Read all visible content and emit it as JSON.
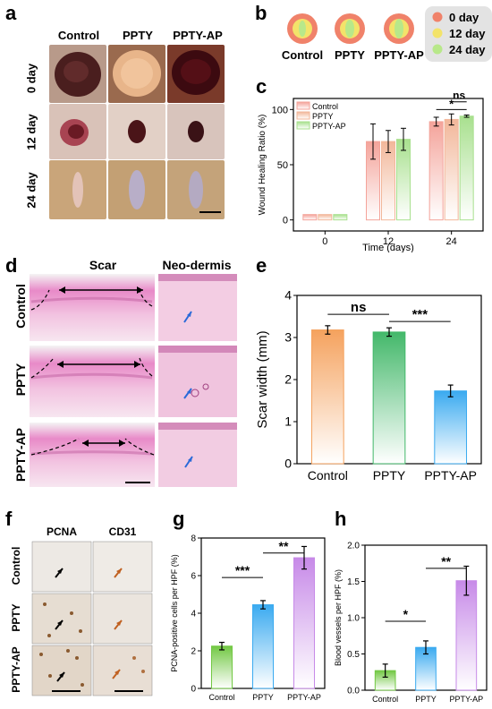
{
  "panel_a": {
    "label": "a",
    "columns": [
      "Control",
      "PPTY",
      "PPTY-AP"
    ],
    "rows": [
      "0 day",
      "12 day",
      "24 day"
    ]
  },
  "panel_b": {
    "label": "b",
    "groups": [
      "Control",
      "PPTY",
      "PPTY-AP"
    ],
    "legend": [
      {
        "label": "0 day",
        "color": "#f0826a"
      },
      {
        "label": "12 day",
        "color": "#f3e36a"
      },
      {
        "label": "24 day",
        "color": "#b8e88a"
      }
    ]
  },
  "panel_d": {
    "label": "d",
    "columns": [
      "Scar",
      "Neo-dermis"
    ],
    "rows": [
      "Control",
      "PPTY",
      "PPTY-AP"
    ]
  },
  "panel_f": {
    "label": "f",
    "columns": [
      "PCNA",
      "CD31"
    ],
    "rows": [
      "Control",
      "PPTY",
      "PPTY-AP"
    ]
  },
  "colors": {
    "control": "#f4a39a",
    "ppty": "#f2b79a",
    "pptyap": "#a8e08e",
    "orange": "#f5a25e",
    "green": "#43b86a",
    "blue": "#3aaaf0",
    "lime": "#72c843",
    "purple": "#c78ae8"
  },
  "chart_data": [
    {
      "id": "c",
      "label": "c",
      "type": "bar",
      "ylabel": "Wound Healing Ratio (%)",
      "xlabel": "Time (days)",
      "categories": [
        "0",
        "12",
        "24"
      ],
      "ylim": [
        -10,
        110
      ],
      "yticks": [
        "0",
        "50",
        "100"
      ],
      "series": [
        {
          "name": "Control",
          "values": [
            0,
            71,
            89
          ],
          "errors": [
            0,
            16,
            4
          ]
        },
        {
          "name": "PPTY",
          "values": [
            0,
            71,
            91
          ],
          "errors": [
            0,
            10,
            5
          ]
        },
        {
          "name": "PPTY-AP",
          "values": [
            0,
            73,
            94
          ],
          "errors": [
            0,
            10,
            1
          ]
        }
      ],
      "annotations": [
        "ns",
        "*"
      ],
      "legend": "top-left"
    },
    {
      "id": "e",
      "label": "e",
      "type": "bar",
      "ylabel": "Scar width (mm)",
      "categories": [
        "Control",
        "PPTY",
        "PPTY-AP"
      ],
      "values": [
        3.18,
        3.13,
        1.73
      ],
      "errors": [
        0.1,
        0.1,
        0.14
      ],
      "ylim": [
        0,
        4
      ],
      "yticks": [
        "0",
        "1",
        "2",
        "3",
        "4"
      ],
      "annotations": [
        "ns",
        "***"
      ]
    },
    {
      "id": "g",
      "label": "g",
      "type": "bar",
      "ylabel": "PCNA-positive cells per HPF (%)",
      "categories": [
        "Control",
        "PPTY",
        "PPTY-AP"
      ],
      "values": [
        2.25,
        4.45,
        6.95
      ],
      "errors": [
        0.2,
        0.22,
        0.6
      ],
      "ylim": [
        0,
        8
      ],
      "yticks": [
        "0",
        "2",
        "4",
        "6",
        "8"
      ],
      "annotations": [
        "***",
        "**"
      ]
    },
    {
      "id": "h",
      "label": "h",
      "type": "bar",
      "ylabel": "Blood vessels per HPF (%)",
      "categories": [
        "Control",
        "PPTY",
        "PPTY-AP"
      ],
      "values": [
        0.27,
        0.59,
        1.51
      ],
      "errors": [
        0.09,
        0.09,
        0.2
      ],
      "ylim": [
        0,
        2
      ],
      "yticks": [
        "0.0",
        "0.5",
        "1.0",
        "1.5",
        "2.0"
      ],
      "annotations": [
        "*",
        "**"
      ]
    }
  ]
}
